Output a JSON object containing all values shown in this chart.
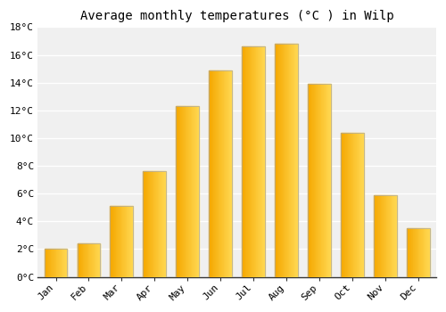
{
  "title": "Average monthly temperatures (°C ) in Wilp",
  "months": [
    "Jan",
    "Feb",
    "Mar",
    "Apr",
    "May",
    "Jun",
    "Jul",
    "Aug",
    "Sep",
    "Oct",
    "Nov",
    "Dec"
  ],
  "values": [
    2.0,
    2.4,
    5.1,
    7.6,
    12.3,
    14.9,
    16.6,
    16.8,
    13.9,
    10.4,
    5.9,
    3.5
  ],
  "bar_color_left": "#F5A800",
  "bar_color_right": "#FFD750",
  "bar_edge_color": "#AAAAAA",
  "ylim": [
    0,
    18
  ],
  "yticks": [
    0,
    2,
    4,
    6,
    8,
    10,
    12,
    14,
    16,
    18
  ],
  "background_color": "#FFFFFF",
  "plot_bg_color": "#F0F0F0",
  "grid_color": "#FFFFFF",
  "title_fontsize": 10,
  "tick_fontsize": 8,
  "font_family": "monospace"
}
